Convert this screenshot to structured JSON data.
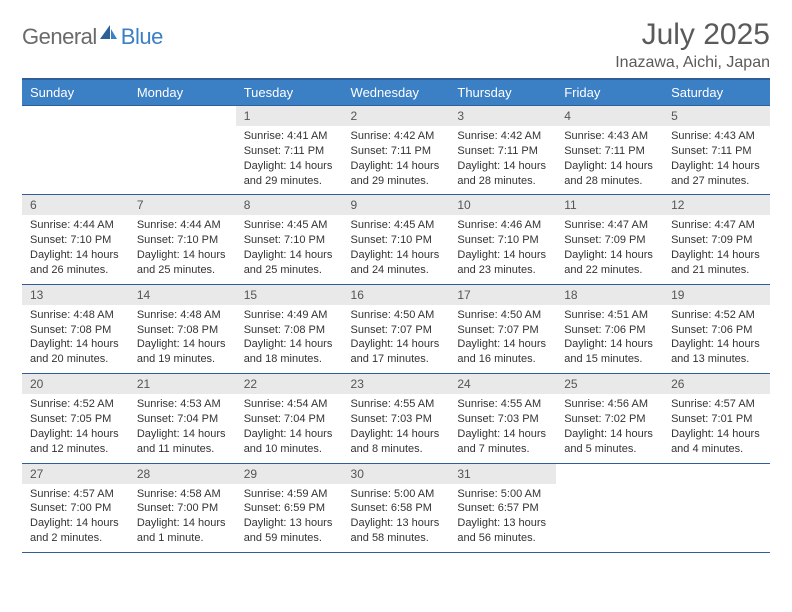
{
  "brand": {
    "part1": "General",
    "part2": "Blue"
  },
  "title": "July 2025",
  "location": "Inazawa, Aichi, Japan",
  "colors": {
    "header_bg": "#3b7fc4",
    "header_border": "#2e5f96",
    "daynum_bg": "#e9e9e9",
    "text": "#333333",
    "title_text": "#5a5a5a",
    "logo_gray": "#6a6a6a",
    "logo_blue": "#3b7fc4",
    "background": "#ffffff"
  },
  "typography": {
    "title_fontsize": 30,
    "location_fontsize": 16,
    "dayhead_fontsize": 13,
    "daynum_fontsize": 12,
    "body_fontsize": 11
  },
  "weekdays": [
    "Sunday",
    "Monday",
    "Tuesday",
    "Wednesday",
    "Thursday",
    "Friday",
    "Saturday"
  ],
  "weeks": [
    [
      null,
      null,
      {
        "n": "1",
        "sr": "Sunrise: 4:41 AM",
        "ss": "Sunset: 7:11 PM",
        "d1": "Daylight: 14 hours",
        "d2": "and 29 minutes."
      },
      {
        "n": "2",
        "sr": "Sunrise: 4:42 AM",
        "ss": "Sunset: 7:11 PM",
        "d1": "Daylight: 14 hours",
        "d2": "and 29 minutes."
      },
      {
        "n": "3",
        "sr": "Sunrise: 4:42 AM",
        "ss": "Sunset: 7:11 PM",
        "d1": "Daylight: 14 hours",
        "d2": "and 28 minutes."
      },
      {
        "n": "4",
        "sr": "Sunrise: 4:43 AM",
        "ss": "Sunset: 7:11 PM",
        "d1": "Daylight: 14 hours",
        "d2": "and 28 minutes."
      },
      {
        "n": "5",
        "sr": "Sunrise: 4:43 AM",
        "ss": "Sunset: 7:11 PM",
        "d1": "Daylight: 14 hours",
        "d2": "and 27 minutes."
      }
    ],
    [
      {
        "n": "6",
        "sr": "Sunrise: 4:44 AM",
        "ss": "Sunset: 7:10 PM",
        "d1": "Daylight: 14 hours",
        "d2": "and 26 minutes."
      },
      {
        "n": "7",
        "sr": "Sunrise: 4:44 AM",
        "ss": "Sunset: 7:10 PM",
        "d1": "Daylight: 14 hours",
        "d2": "and 25 minutes."
      },
      {
        "n": "8",
        "sr": "Sunrise: 4:45 AM",
        "ss": "Sunset: 7:10 PM",
        "d1": "Daylight: 14 hours",
        "d2": "and 25 minutes."
      },
      {
        "n": "9",
        "sr": "Sunrise: 4:45 AM",
        "ss": "Sunset: 7:10 PM",
        "d1": "Daylight: 14 hours",
        "d2": "and 24 minutes."
      },
      {
        "n": "10",
        "sr": "Sunrise: 4:46 AM",
        "ss": "Sunset: 7:10 PM",
        "d1": "Daylight: 14 hours",
        "d2": "and 23 minutes."
      },
      {
        "n": "11",
        "sr": "Sunrise: 4:47 AM",
        "ss": "Sunset: 7:09 PM",
        "d1": "Daylight: 14 hours",
        "d2": "and 22 minutes."
      },
      {
        "n": "12",
        "sr": "Sunrise: 4:47 AM",
        "ss": "Sunset: 7:09 PM",
        "d1": "Daylight: 14 hours",
        "d2": "and 21 minutes."
      }
    ],
    [
      {
        "n": "13",
        "sr": "Sunrise: 4:48 AM",
        "ss": "Sunset: 7:08 PM",
        "d1": "Daylight: 14 hours",
        "d2": "and 20 minutes."
      },
      {
        "n": "14",
        "sr": "Sunrise: 4:48 AM",
        "ss": "Sunset: 7:08 PM",
        "d1": "Daylight: 14 hours",
        "d2": "and 19 minutes."
      },
      {
        "n": "15",
        "sr": "Sunrise: 4:49 AM",
        "ss": "Sunset: 7:08 PM",
        "d1": "Daylight: 14 hours",
        "d2": "and 18 minutes."
      },
      {
        "n": "16",
        "sr": "Sunrise: 4:50 AM",
        "ss": "Sunset: 7:07 PM",
        "d1": "Daylight: 14 hours",
        "d2": "and 17 minutes."
      },
      {
        "n": "17",
        "sr": "Sunrise: 4:50 AM",
        "ss": "Sunset: 7:07 PM",
        "d1": "Daylight: 14 hours",
        "d2": "and 16 minutes."
      },
      {
        "n": "18",
        "sr": "Sunrise: 4:51 AM",
        "ss": "Sunset: 7:06 PM",
        "d1": "Daylight: 14 hours",
        "d2": "and 15 minutes."
      },
      {
        "n": "19",
        "sr": "Sunrise: 4:52 AM",
        "ss": "Sunset: 7:06 PM",
        "d1": "Daylight: 14 hours",
        "d2": "and 13 minutes."
      }
    ],
    [
      {
        "n": "20",
        "sr": "Sunrise: 4:52 AM",
        "ss": "Sunset: 7:05 PM",
        "d1": "Daylight: 14 hours",
        "d2": "and 12 minutes."
      },
      {
        "n": "21",
        "sr": "Sunrise: 4:53 AM",
        "ss": "Sunset: 7:04 PM",
        "d1": "Daylight: 14 hours",
        "d2": "and 11 minutes."
      },
      {
        "n": "22",
        "sr": "Sunrise: 4:54 AM",
        "ss": "Sunset: 7:04 PM",
        "d1": "Daylight: 14 hours",
        "d2": "and 10 minutes."
      },
      {
        "n": "23",
        "sr": "Sunrise: 4:55 AM",
        "ss": "Sunset: 7:03 PM",
        "d1": "Daylight: 14 hours",
        "d2": "and 8 minutes."
      },
      {
        "n": "24",
        "sr": "Sunrise: 4:55 AM",
        "ss": "Sunset: 7:03 PM",
        "d1": "Daylight: 14 hours",
        "d2": "and 7 minutes."
      },
      {
        "n": "25",
        "sr": "Sunrise: 4:56 AM",
        "ss": "Sunset: 7:02 PM",
        "d1": "Daylight: 14 hours",
        "d2": "and 5 minutes."
      },
      {
        "n": "26",
        "sr": "Sunrise: 4:57 AM",
        "ss": "Sunset: 7:01 PM",
        "d1": "Daylight: 14 hours",
        "d2": "and 4 minutes."
      }
    ],
    [
      {
        "n": "27",
        "sr": "Sunrise: 4:57 AM",
        "ss": "Sunset: 7:00 PM",
        "d1": "Daylight: 14 hours",
        "d2": "and 2 minutes."
      },
      {
        "n": "28",
        "sr": "Sunrise: 4:58 AM",
        "ss": "Sunset: 7:00 PM",
        "d1": "Daylight: 14 hours",
        "d2": "and 1 minute."
      },
      {
        "n": "29",
        "sr": "Sunrise: 4:59 AM",
        "ss": "Sunset: 6:59 PM",
        "d1": "Daylight: 13 hours",
        "d2": "and 59 minutes."
      },
      {
        "n": "30",
        "sr": "Sunrise: 5:00 AM",
        "ss": "Sunset: 6:58 PM",
        "d1": "Daylight: 13 hours",
        "d2": "and 58 minutes."
      },
      {
        "n": "31",
        "sr": "Sunrise: 5:00 AM",
        "ss": "Sunset: 6:57 PM",
        "d1": "Daylight: 13 hours",
        "d2": "and 56 minutes."
      },
      null,
      null
    ]
  ]
}
